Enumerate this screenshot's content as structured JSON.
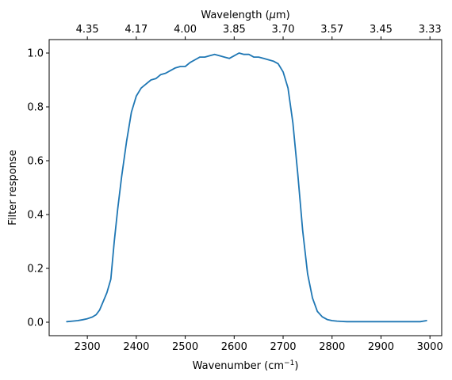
{
  "chart_data": {
    "type": "line",
    "xlabel": "Wavenumber (cm",
    "xlabel_sup": "−1",
    "xlabel_close": ")",
    "ylabel": "Filter response",
    "top_xlabel": "Wavelength (",
    "top_xlabel_mu": "μ",
    "top_xlabel_end": "m)",
    "xlim": [
      2222,
      3024
    ],
    "ylim": [
      -0.05,
      1.05
    ],
    "x_ticks": [
      2300,
      2400,
      2500,
      2600,
      2700,
      2800,
      2900,
      3000
    ],
    "y_ticks": [
      0.0,
      0.2,
      0.4,
      0.6,
      0.8,
      1.0
    ],
    "y_tick_labels": [
      "0.0",
      "0.2",
      "0.4",
      "0.6",
      "0.8",
      "1.0"
    ],
    "top_ticks": [
      {
        "position": 2300,
        "label": "4.35"
      },
      {
        "position": 2400,
        "label": "4.17"
      },
      {
        "position": 2500,
        "label": "4.00"
      },
      {
        "position": 2600,
        "label": "3.85"
      },
      {
        "position": 2700,
        "label": "3.70"
      },
      {
        "position": 2800,
        "label": "3.57"
      },
      {
        "position": 2900,
        "label": "3.45"
      },
      {
        "position": 3000,
        "label": "3.33"
      }
    ],
    "grid": false,
    "series": [
      {
        "color": "#1f77b4",
        "x": [
          2258,
          2270,
          2280,
          2290,
          2300,
          2310,
          2318,
          2325,
          2332,
          2340,
          2348,
          2355,
          2362,
          2370,
          2380,
          2390,
          2400,
          2410,
          2420,
          2430,
          2440,
          2450,
          2460,
          2470,
          2480,
          2490,
          2500,
          2510,
          2520,
          2530,
          2540,
          2550,
          2560,
          2570,
          2580,
          2590,
          2600,
          2610,
          2620,
          2630,
          2640,
          2650,
          2660,
          2670,
          2680,
          2690,
          2700,
          2710,
          2720,
          2730,
          2740,
          2750,
          2760,
          2770,
          2780,
          2790,
          2800,
          2810,
          2820,
          2830,
          2840,
          2850,
          2860,
          2870,
          2880,
          2900,
          2920,
          2940,
          2960,
          2980,
          2993
        ],
        "y": [
          0.002,
          0.004,
          0.006,
          0.009,
          0.013,
          0.019,
          0.028,
          0.045,
          0.075,
          0.11,
          0.16,
          0.3,
          0.42,
          0.54,
          0.67,
          0.78,
          0.84,
          0.87,
          0.885,
          0.9,
          0.905,
          0.92,
          0.925,
          0.935,
          0.945,
          0.95,
          0.95,
          0.965,
          0.975,
          0.985,
          0.985,
          0.99,
          0.995,
          0.99,
          0.985,
          0.98,
          0.99,
          1.0,
          0.995,
          0.995,
          0.985,
          0.985,
          0.98,
          0.975,
          0.97,
          0.96,
          0.93,
          0.87,
          0.74,
          0.55,
          0.34,
          0.18,
          0.09,
          0.04,
          0.02,
          0.01,
          0.006,
          0.004,
          0.003,
          0.002,
          0.002,
          0.002,
          0.002,
          0.002,
          0.002,
          0.002,
          0.002,
          0.002,
          0.002,
          0.002,
          0.006
        ]
      }
    ]
  }
}
